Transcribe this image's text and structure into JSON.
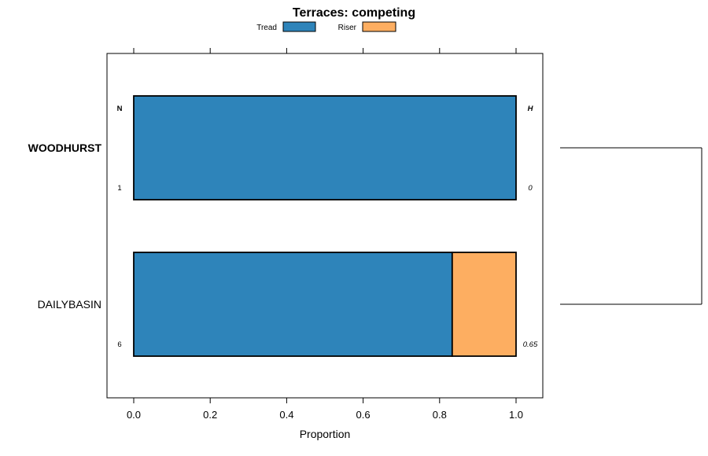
{
  "chart_data": {
    "type": "bar",
    "orientation": "horizontal",
    "stacked": true,
    "title": "Terraces: competing",
    "xlabel": "Proportion",
    "ylabel": "",
    "xlim": [
      -0.07,
      1.07
    ],
    "x_ticks": [
      "0.0",
      "0.2",
      "0.4",
      "0.6",
      "0.8",
      "1.0"
    ],
    "x_tick_values": [
      0,
      0.2,
      0.4,
      0.6,
      0.8,
      1.0
    ],
    "grid": false,
    "legend": {
      "placement": "top",
      "entries": [
        "Tread",
        "Riser"
      ]
    },
    "series": [
      {
        "name": "Tread",
        "color": "#2e84ba",
        "values": [
          1.0,
          0.833
        ]
      },
      {
        "name": "Riser",
        "color": "#fdae61",
        "values": [
          0.0,
          0.167
        ]
      }
    ],
    "categories": [
      "WOODHURST",
      "DAILYBASIN"
    ],
    "rows": [
      {
        "label": "WOODHURST",
        "bold": true,
        "n": "1",
        "h": "0",
        "tread": 1.0,
        "riser": 0.0
      },
      {
        "label": "DAILYBASIN",
        "bold": false,
        "n": "6",
        "h": "0.65",
        "tread": 0.833,
        "riser": 0.167
      }
    ],
    "column_headers": {
      "n": "N",
      "h": "H"
    },
    "dendrogram": true
  }
}
